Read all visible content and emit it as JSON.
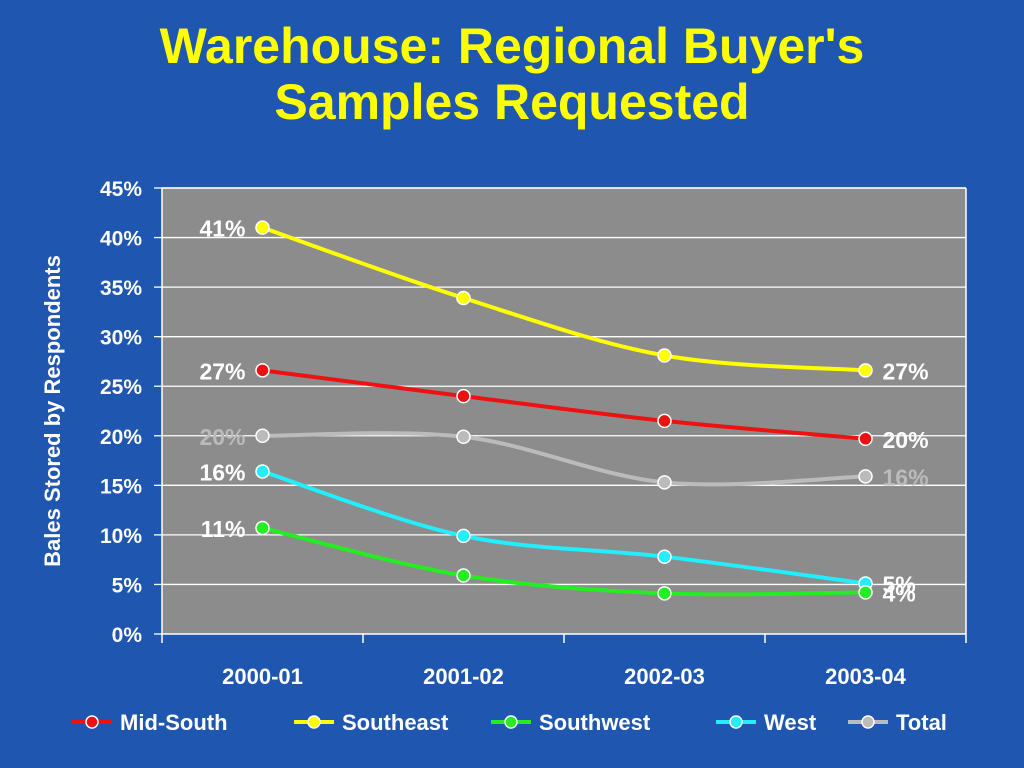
{
  "title_line1": "Warehouse: Regional Buyer's",
  "title_line2": "Samples Requested",
  "chart_data": {
    "type": "line",
    "title": "Warehouse: Regional Buyer's Samples Requested",
    "xlabel": "",
    "ylabel": "Bales Stored by Respondents",
    "categories": [
      "2000-01",
      "2001-02",
      "2002-03",
      "2003-04"
    ],
    "ylim": [
      0,
      45
    ],
    "yticks": [
      "0%",
      "5%",
      "10%",
      "15%",
      "20%",
      "25%",
      "30%",
      "35%",
      "40%",
      "45%"
    ],
    "grid": true,
    "legend_position": "bottom",
    "series": [
      {
        "name": "Mid-South",
        "color": "#ee1111",
        "values": [
          26.6,
          24.0,
          21.5,
          19.7
        ],
        "labels": [
          "27%",
          null,
          null,
          "20%"
        ],
        "label_color": "#ffffff"
      },
      {
        "name": "Southeast",
        "color": "#ffff00",
        "values": [
          41.0,
          33.9,
          28.1,
          26.6
        ],
        "labels": [
          "41%",
          null,
          null,
          "27%"
        ],
        "label_color": "#ffffff"
      },
      {
        "name": "Southwest",
        "color": "#22ee22",
        "values": [
          10.7,
          5.9,
          4.1,
          4.2
        ],
        "labels": [
          "11%",
          null,
          null,
          "4%"
        ],
        "label_color": "#ffffff"
      },
      {
        "name": "West",
        "color": "#22eeff",
        "values": [
          16.4,
          9.9,
          7.8,
          5.1
        ],
        "labels": [
          "16%",
          null,
          null,
          "5%"
        ],
        "label_color": "#ffffff"
      },
      {
        "name": "Total",
        "color": "#bbbbbb",
        "values": [
          20.0,
          19.9,
          15.3,
          15.9
        ],
        "labels": [
          "20%",
          null,
          null,
          "16%"
        ],
        "label_color": "#bbbbbb"
      }
    ]
  }
}
